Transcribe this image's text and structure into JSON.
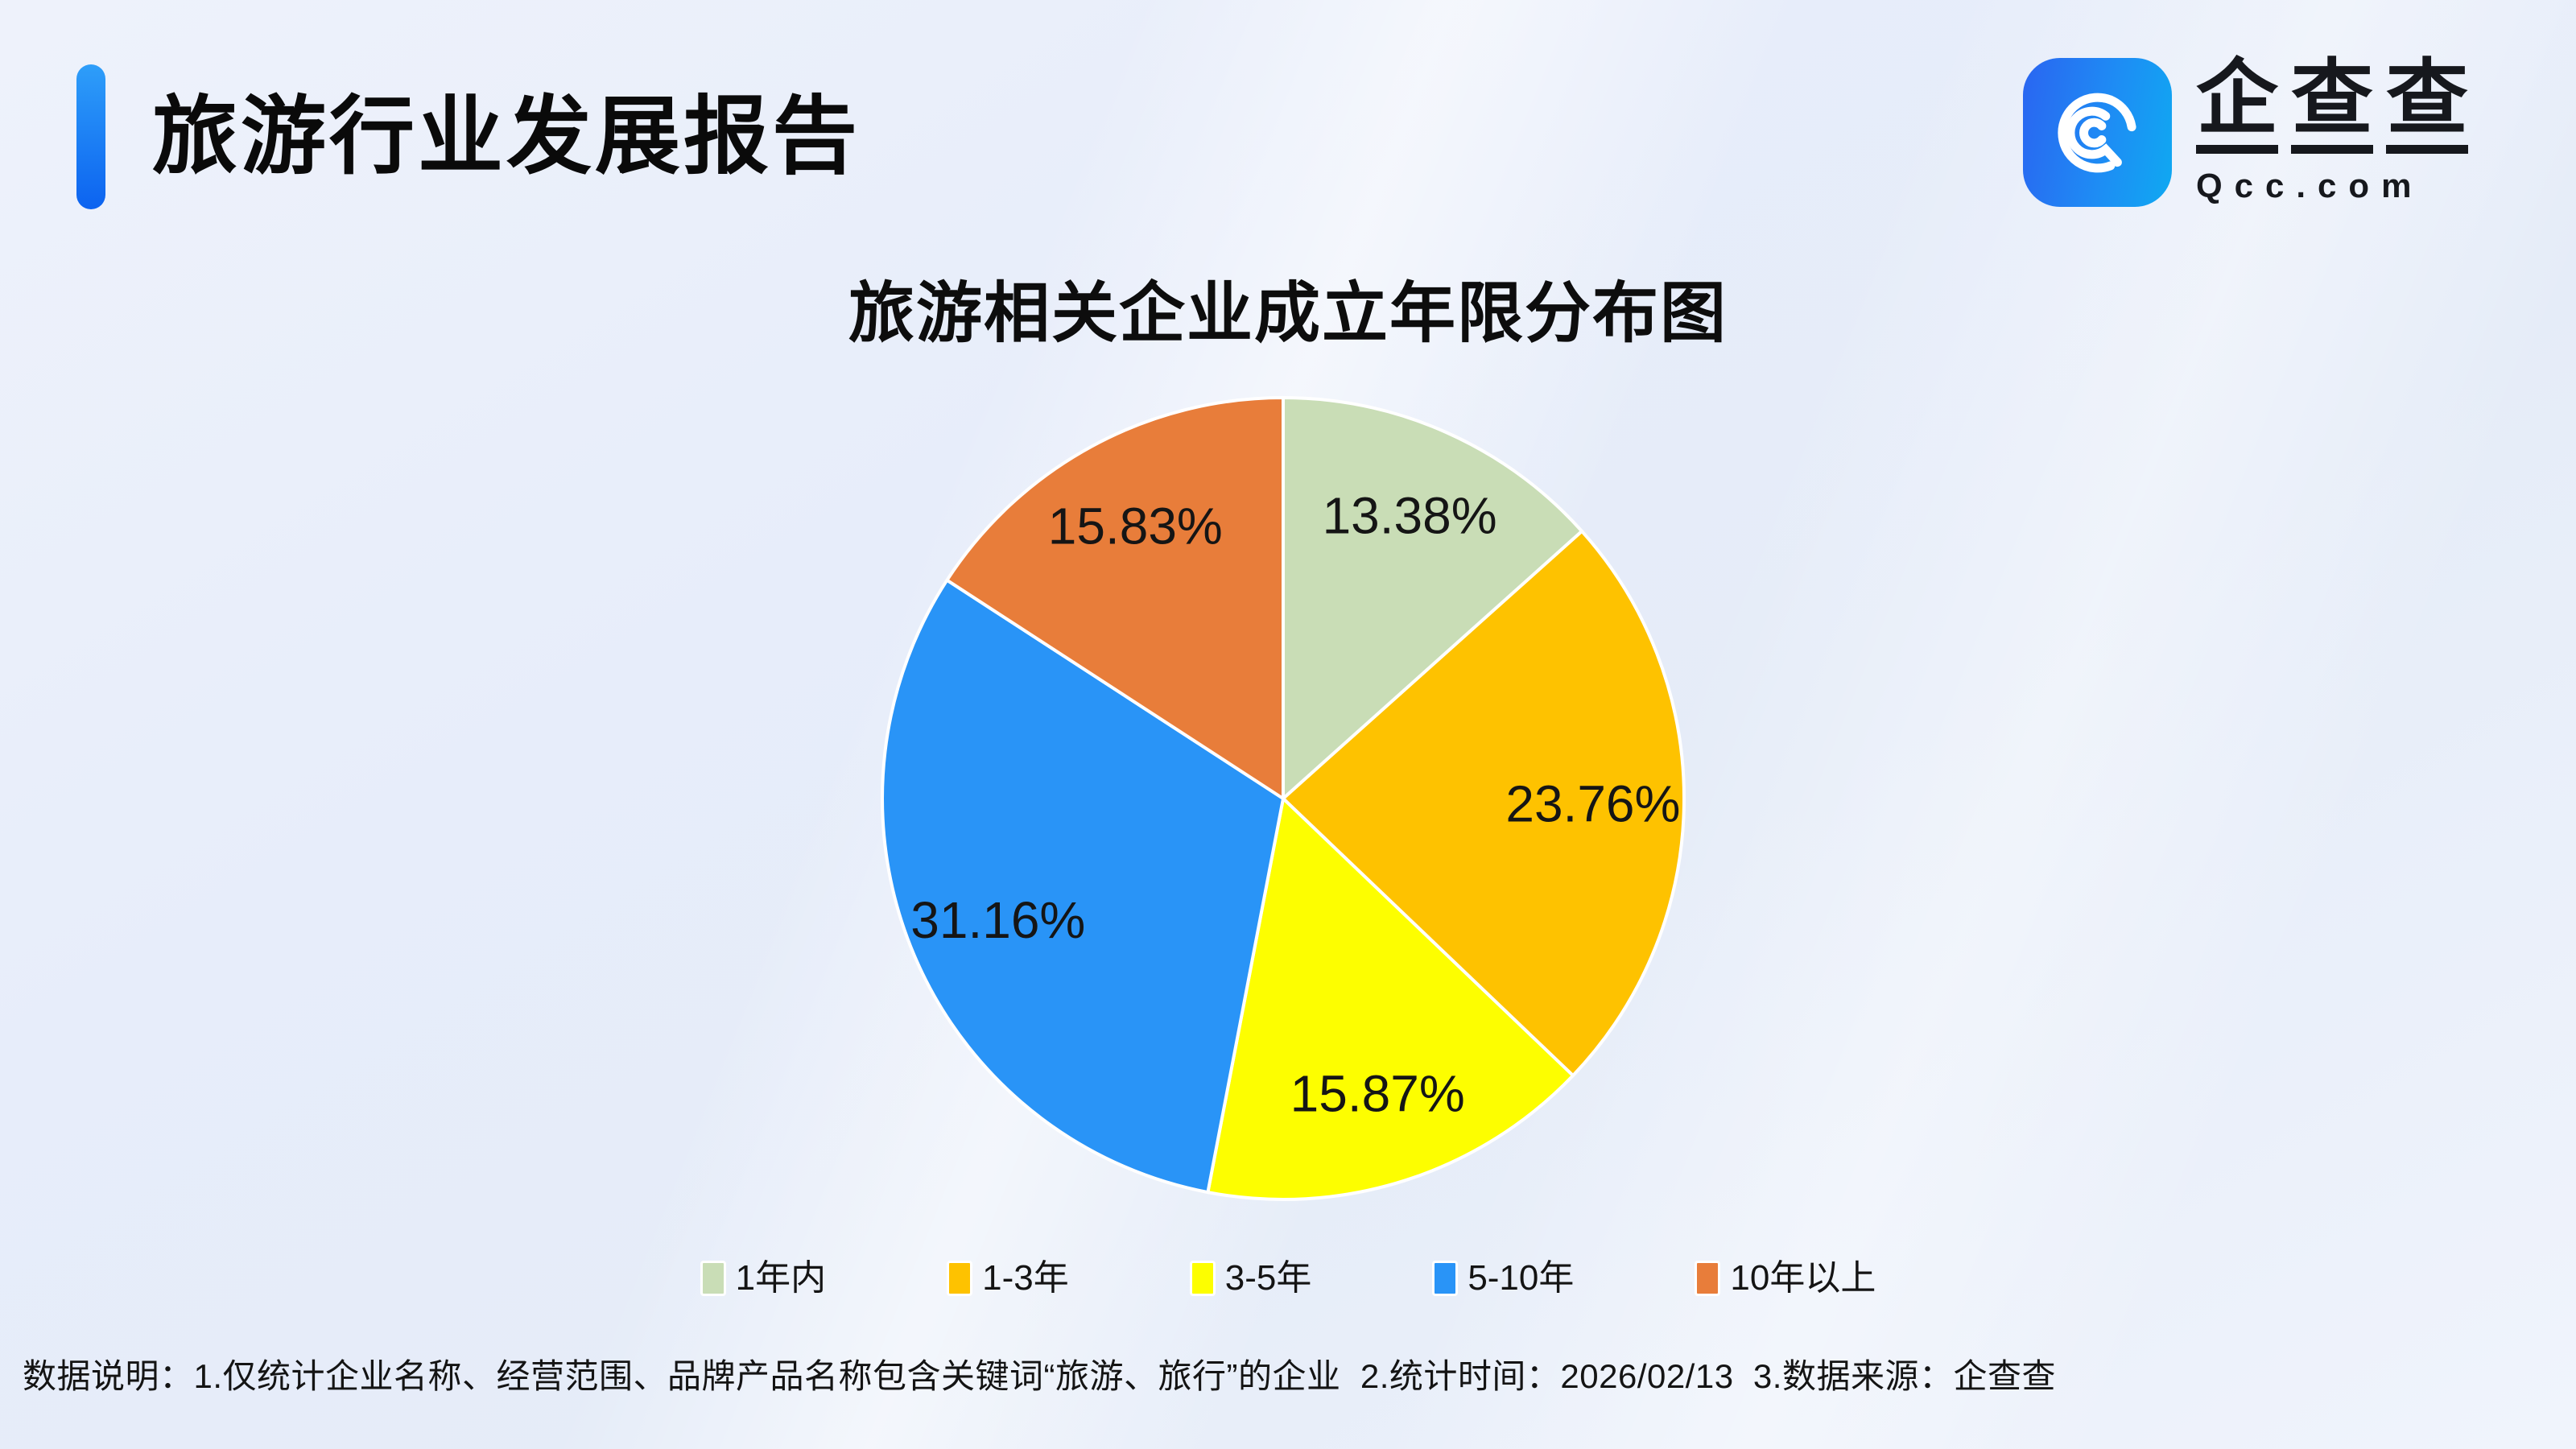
{
  "header": {
    "title": "旅游行业发展报告"
  },
  "logo": {
    "brand_chars": [
      "企",
      "查",
      "查"
    ],
    "domain": "Qcc.com",
    "icon_colors": [
      "#2a65f1",
      "#0fa9f2"
    ]
  },
  "chart_data": {
    "type": "pie",
    "title": "旅游相关企业成立年限分布图",
    "categories": [
      "1年内",
      "1-3年",
      "3-5年",
      "5-10年",
      "10年以上"
    ],
    "values": [
      13.38,
      23.76,
      15.87,
      31.16,
      15.83
    ],
    "labels": [
      "13.38%",
      "23.76%",
      "15.87%",
      "31.16%",
      "15.83%"
    ],
    "colors": [
      "#c9ddb6",
      "#fec200",
      "#fdfe00",
      "#2994f7",
      "#e87d3a"
    ],
    "unit": "%",
    "start_angle_deg": 0,
    "direction": "clockwise",
    "slice_border_color": "#ffffff",
    "legend_position": "bottom"
  },
  "footer": {
    "note": "数据说明：1.仅统计企业名称、经营范围、品牌产品名称包含关键词“旅游、旅行”的企业  2.统计时间：2026/02/13  3.数据来源：企查查"
  },
  "theme": {
    "background": "#e8eefa",
    "accent_blue": "#0c63f0",
    "text_color": "#141414"
  }
}
